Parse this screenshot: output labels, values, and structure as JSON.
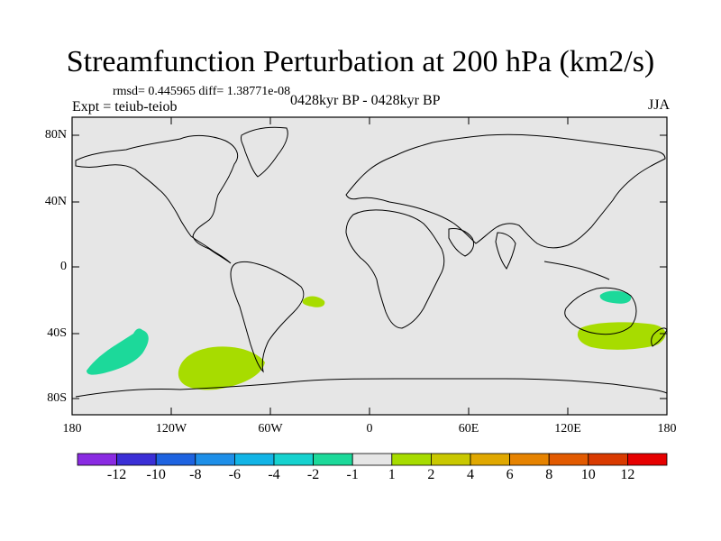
{
  "title": "Streamfunction Perturbation at 200 hPa (km2/s)",
  "stats": "rmsd= 0.445965 diff= 1.38771e-08",
  "experiment": "Expt = teiub-teiob",
  "period": "0428kyr BP - 0428kyr BP",
  "season": "JJA",
  "axes": {
    "y_ticks": [
      "80N",
      "40N",
      "0",
      "40S",
      "80S"
    ],
    "x_ticks": [
      "180",
      "120W",
      "60W",
      "0",
      "60E",
      "120E",
      "180"
    ]
  },
  "map_colors": {
    "ocean": "#e6e6e6",
    "coast": "#000000",
    "frame": "#000000"
  },
  "colorbar": {
    "labels": [
      "-12",
      "-10",
      "-8",
      "-6",
      "-4",
      "-2",
      "-1",
      "1",
      "2",
      "4",
      "6",
      "8",
      "10",
      "12"
    ],
    "colors": [
      "#8a2be2",
      "#3b2fd6",
      "#1e63e0",
      "#1e8fe8",
      "#12b4e6",
      "#16d2cf",
      "#1cd99a",
      "#e6e6e6",
      "#a7dc00",
      "#c9c800",
      "#e0a800",
      "#e68300",
      "#e25a00",
      "#d93a00",
      "#e60000"
    ]
  }
}
